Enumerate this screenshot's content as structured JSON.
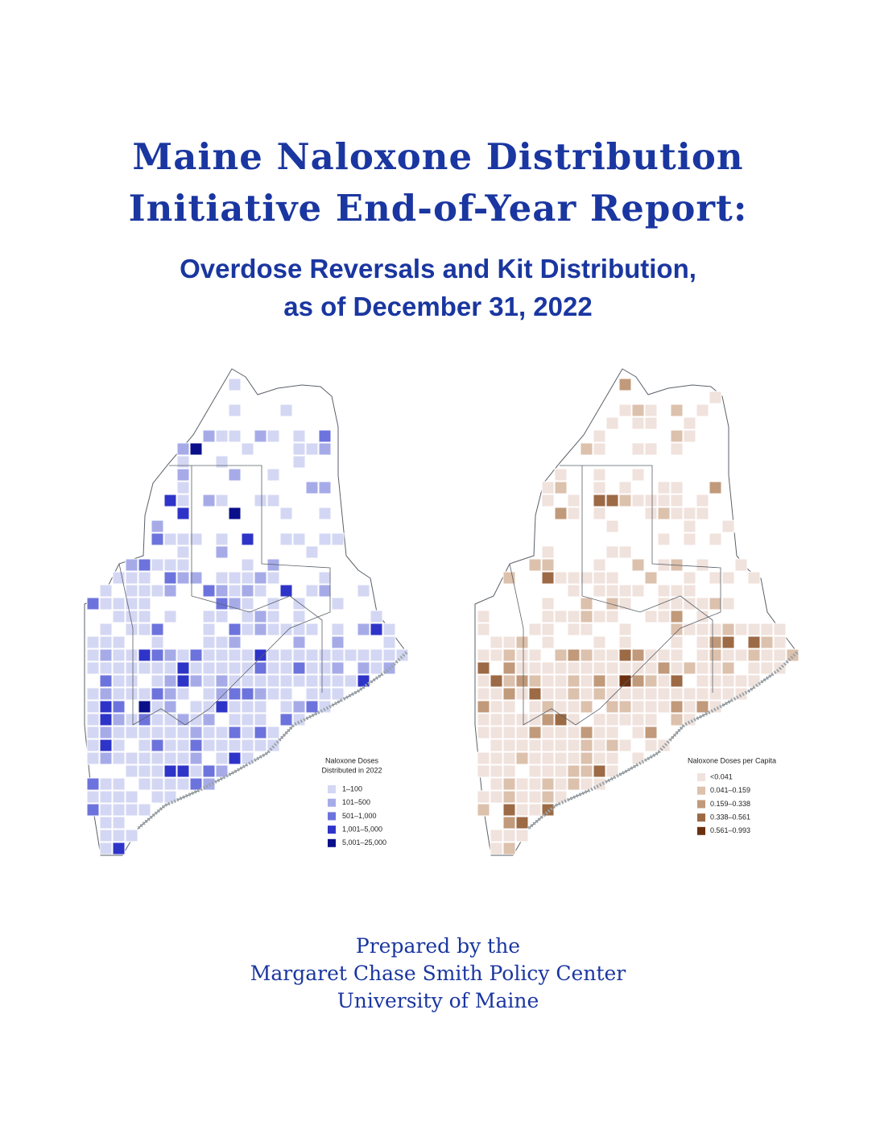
{
  "title": [
    "Maine Naloxone Distribution",
    "Initiative End-of-Year Report:"
  ],
  "subtitle": [
    "Overdose Reversals and Kit Distribution,",
    "as of December 31, 2022"
  ],
  "maps": [
    {
      "legend_title": [
        "Naloxone Doses",
        "Distributed in 2022"
      ],
      "legend": [
        {
          "label": "1–100",
          "color": "#d4d7f3"
        },
        {
          "label": "101–500",
          "color": "#a6abe8"
        },
        {
          "label": "501–1,000",
          "color": "#6d73dc"
        },
        {
          "label": "1,001–5,000",
          "color": "#2f34c9"
        },
        {
          "label": "5,001–25,000",
          "color": "#0a0f8a"
        }
      ]
    },
    {
      "legend_title": [
        "Naloxone Doses per Capita"
      ],
      "legend": [
        {
          "label": "<0.041",
          "color": "#f0e2dc"
        },
        {
          "label": "0.041–0.159",
          "color": "#dcc1ad"
        },
        {
          "label": "0.159–0.338",
          "color": "#c19a7b"
        },
        {
          "label": "0.338–0.561",
          "color": "#9c6a45"
        },
        {
          "label": "0.561–0.993",
          "color": "#6b300f"
        }
      ]
    }
  ],
  "prepared_by": [
    "Prepared by the",
    "Margaret Chase Smith Policy Center",
    "University of Maine"
  ]
}
